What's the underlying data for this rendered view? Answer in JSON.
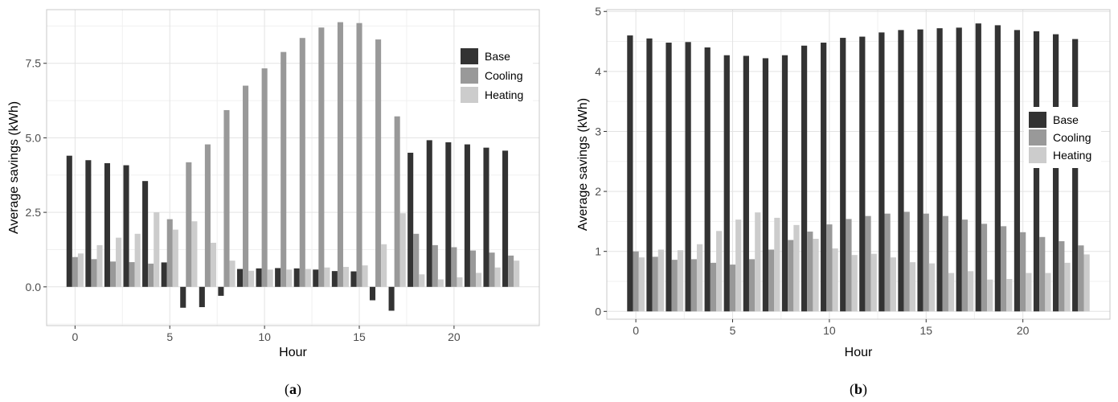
{
  "chart_data": [
    {
      "type": "bar",
      "caption_prefix": "(",
      "caption_letter": "a",
      "caption_suffix": ")",
      "xlabel": "Hour",
      "ylabel": "Average savings (kWh)",
      "xlim": [
        -1.5,
        24.5
      ],
      "ylim": [
        -1.3,
        9.3
      ],
      "x_ticks": [
        0,
        5,
        10,
        15,
        20
      ],
      "y_ticks": [
        0,
        2.5,
        5,
        7.5
      ],
      "y_tick_labels": [
        "0.0",
        "2.5",
        "5.0",
        "7.5"
      ],
      "grid": true,
      "legend_position": "top-right",
      "categories": [
        0,
        1,
        2,
        3,
        4,
        5,
        6,
        7,
        8,
        9,
        10,
        11,
        12,
        13,
        14,
        15,
        16,
        17,
        18,
        19,
        20,
        21,
        22,
        23
      ],
      "series": [
        {
          "name": "Base",
          "color": "#333333",
          "values": [
            4.4,
            4.25,
            4.15,
            4.08,
            3.55,
            0.82,
            -0.7,
            -0.68,
            -0.3,
            0.6,
            0.62,
            0.63,
            0.62,
            0.58,
            0.53,
            0.52,
            -0.45,
            -0.8,
            4.5,
            4.92,
            4.85,
            4.78,
            4.67,
            4.57
          ]
        },
        {
          "name": "Cooling",
          "color": "#999999",
          "values": [
            1.0,
            0.93,
            0.85,
            0.83,
            0.78,
            2.27,
            4.18,
            4.78,
            5.93,
            6.75,
            7.33,
            7.88,
            8.35,
            8.7,
            8.88,
            8.85,
            8.3,
            5.72,
            1.78,
            1.4,
            1.33,
            1.22,
            1.15,
            1.05
          ]
        },
        {
          "name": "Heating",
          "color": "#cccccc",
          "values": [
            1.12,
            1.4,
            1.65,
            1.78,
            2.5,
            1.92,
            2.2,
            1.48,
            0.88,
            0.54,
            0.58,
            0.58,
            0.6,
            0.65,
            0.67,
            0.72,
            1.43,
            2.47,
            0.42,
            0.25,
            0.32,
            0.47,
            0.65,
            0.88
          ]
        }
      ]
    },
    {
      "type": "bar",
      "caption_prefix": "(",
      "caption_letter": "b",
      "caption_suffix": ")",
      "xlabel": "Hour",
      "ylabel": "Average savings (kWh)",
      "xlim": [
        -1.5,
        24.5
      ],
      "ylim": [
        -0.13,
        5.03
      ],
      "x_ticks": [
        0,
        5,
        10,
        15,
        20
      ],
      "y_ticks": [
        0,
        1,
        2,
        3,
        4,
        5
      ],
      "y_tick_labels": [
        "0",
        "1",
        "2",
        "3",
        "4",
        "5"
      ],
      "grid": true,
      "legend_position": "right",
      "categories": [
        0,
        1,
        2,
        3,
        4,
        5,
        6,
        7,
        8,
        9,
        10,
        11,
        12,
        13,
        14,
        15,
        16,
        17,
        18,
        19,
        20,
        21,
        22,
        23
      ],
      "series": [
        {
          "name": "Base",
          "color": "#333333",
          "values": [
            4.6,
            4.55,
            4.48,
            4.49,
            4.4,
            4.27,
            4.26,
            4.22,
            4.27,
            4.43,
            4.48,
            4.56,
            4.58,
            4.65,
            4.69,
            4.7,
            4.72,
            4.73,
            4.8,
            4.77,
            4.69,
            4.67,
            4.62,
            4.54
          ]
        },
        {
          "name": "Cooling",
          "color": "#999999",
          "values": [
            1.0,
            0.91,
            0.86,
            0.87,
            0.81,
            0.78,
            0.87,
            1.03,
            1.19,
            1.33,
            1.45,
            1.54,
            1.59,
            1.63,
            1.66,
            1.63,
            1.59,
            1.53,
            1.46,
            1.42,
            1.32,
            1.24,
            1.17,
            1.1
          ]
        },
        {
          "name": "Heating",
          "color": "#cccccc",
          "values": [
            0.9,
            1.03,
            1.02,
            1.12,
            1.34,
            1.53,
            1.65,
            1.56,
            1.44,
            1.21,
            1.05,
            0.94,
            0.96,
            0.9,
            0.82,
            0.8,
            0.64,
            0.67,
            0.53,
            0.54,
            0.64,
            0.64,
            0.81,
            0.95
          ]
        }
      ]
    }
  ]
}
